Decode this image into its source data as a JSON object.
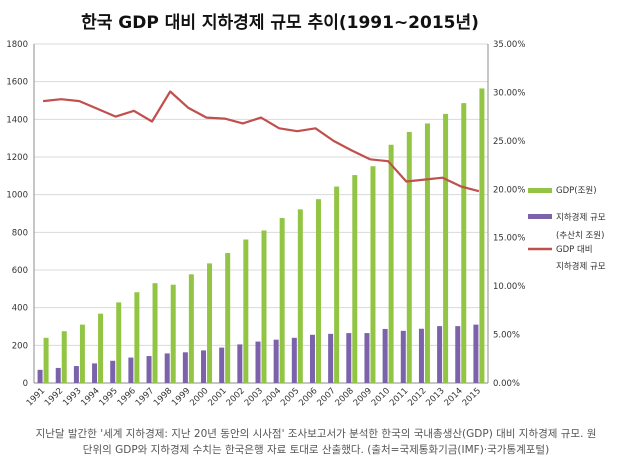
{
  "chart_data": {
    "type": "bar",
    "title": "한국 GDP 대비 지하경제 규모 추이(1991~2015년)",
    "categories": [
      "1991",
      "1992",
      "1993",
      "1994",
      "1995",
      "1996",
      "1997",
      "1998",
      "1999",
      "2000",
      "2001",
      "2002",
      "2003",
      "2004",
      "2005",
      "2006",
      "2007",
      "2008",
      "2009",
      "2010",
      "2011",
      "2012",
      "2013",
      "2014",
      "2015"
    ],
    "series": [
      {
        "name": "GDP(조원)",
        "type": "bar",
        "axis": "left",
        "color": "#92c544",
        "values": [
          240,
          275,
          310,
          368,
          428,
          482,
          530,
          522,
          577,
          635,
          690,
          762,
          810,
          876,
          922,
          976,
          1043,
          1104,
          1151,
          1265,
          1333,
          1378,
          1429,
          1486,
          1564
        ]
      },
      {
        "name": "지하경제 규모 (추산치 조원)",
        "name_lines": [
          "지하경제 규모",
          "(추산치 조원)"
        ],
        "type": "bar",
        "axis": "left",
        "color": "#7b62aa",
        "values": [
          70,
          80,
          90,
          104,
          118,
          135,
          143,
          157,
          163,
          173,
          188,
          205,
          220,
          230,
          240,
          256,
          261,
          265,
          265,
          287,
          277,
          288,
          302,
          302,
          310
        ]
      },
      {
        "name": "GDP 대비 지하경제 규모",
        "name_lines": [
          "GDP 대비",
          "지하경제 규모"
        ],
        "type": "line",
        "axis": "right",
        "color": "#c0504d",
        "values": [
          29.1,
          29.3,
          29.1,
          28.3,
          27.5,
          28.1,
          27.0,
          30.1,
          28.4,
          27.4,
          27.3,
          26.8,
          27.4,
          26.3,
          26.0,
          26.3,
          25.0,
          24.0,
          23.1,
          22.9,
          20.8,
          21.0,
          21.2,
          20.3,
          19.8
        ]
      }
    ],
    "y_left": {
      "min": 0,
      "max": 1800,
      "ticks": [
        "0",
        "200",
        "400",
        "600",
        "800",
        "1000",
        "1200",
        "1400",
        "1600",
        "1800"
      ]
    },
    "y_right": {
      "min": 0,
      "max": 35,
      "ticks": [
        "0.00%",
        "5.00%",
        "10.00%",
        "15.00%",
        "20.00%",
        "25.00%",
        "30.00%",
        "35.00%"
      ]
    },
    "grid": true,
    "legend_position": "right"
  },
  "caption": {
    "line1": "지난달 발간한 '세계 지하경제: 지난 20년 동안의 시사점' 조사보고서가 분석한 한국의 국내총생산(GDP) 대비 지하경제 규모. 원",
    "line2": "단위의 GDP와 지하경제 수치는 한국은행 자료 토대로 산출했다. (출처=국제통화기금(IMF)·국가통계포털)"
  }
}
